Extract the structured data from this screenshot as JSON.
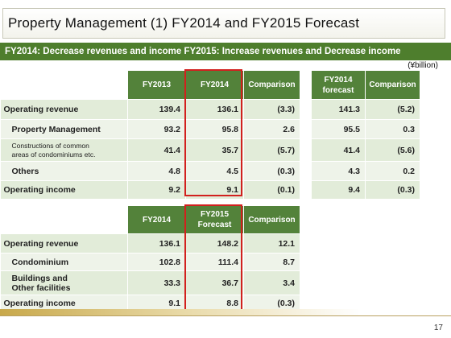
{
  "slide": {
    "title": "Property Management (1) FY2014 and FY2015 Forecast",
    "subtitle": "FY2014: Decrease revenues and income FY2015: Increase revenues and Decrease income",
    "unit": "(¥billion)",
    "page_number": "17"
  },
  "table1": {
    "headers": [
      "FY2013",
      "FY2014",
      "Comparison",
      "FY2014\nforecast",
      "Comparison"
    ],
    "rows": [
      {
        "label": "Operating revenue",
        "fy2013": "139.4",
        "fy2014": "136.1",
        "comp": "(3.3)",
        "forecast": "141.3",
        "comp2": "(5.2)"
      },
      {
        "label": "Property Management",
        "fy2013": "93.2",
        "fy2014": "95.8",
        "comp": "2.6",
        "forecast": "95.5",
        "comp2": "0.3"
      },
      {
        "label": "Constructions of common\nareas of condominiums etc.",
        "fy2013": "41.4",
        "fy2014": "35.7",
        "comp": "(5.7)",
        "forecast": "41.4",
        "comp2": "(5.6)"
      },
      {
        "label": "Others",
        "fy2013": "4.8",
        "fy2014": "4.5",
        "comp": "(0.3)",
        "forecast": "4.3",
        "comp2": "0.2"
      },
      {
        "label": "Operating income",
        "fy2013": "9.2",
        "fy2014": "9.1",
        "comp": "(0.1)",
        "forecast": "9.4",
        "comp2": "(0.3)"
      }
    ]
  },
  "table2": {
    "headers": [
      "FY2014",
      "FY2015\nForecast",
      "Comparison"
    ],
    "rows": [
      {
        "label": "Operating revenue",
        "fy2014": "136.1",
        "fy2015": "148.2",
        "comp": "12.1"
      },
      {
        "label": "Condominium",
        "fy2014": "102.8",
        "fy2015": "111.4",
        "comp": "8.7"
      },
      {
        "label": "Buildings and\nOther facilities",
        "fy2014": "33.3",
        "fy2015": "36.7",
        "comp": "3.4"
      },
      {
        "label": "Operating income",
        "fy2014": "9.1",
        "fy2015": "8.8",
        "comp": "(0.3)"
      }
    ]
  },
  "colors": {
    "header_green": "#53823a",
    "subtitle_green": "#4e7e2d",
    "row_light": "#e2ecd9",
    "row_lighter": "#eef3e9",
    "highlight_red": "#d2201e"
  }
}
